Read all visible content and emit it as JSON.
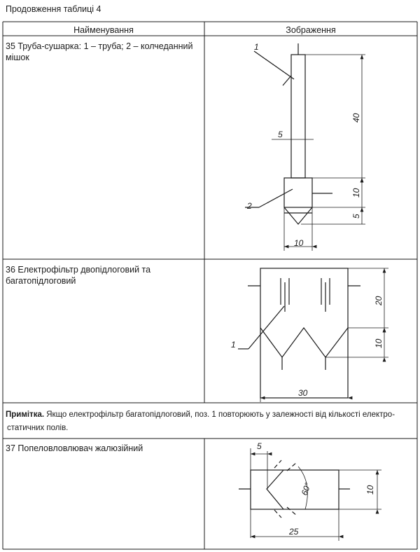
{
  "caption": "Продовження таблиці 4",
  "table": {
    "headers": {
      "name": "Найменування",
      "image": "Зображення"
    },
    "rows": [
      {
        "text": "35 Труба-сушарка: 1 – труба; 2 – колчеданний мішок",
        "dims": {
          "length": "40",
          "pipe_width": "5",
          "bag_height": "10",
          "cone_height": "5",
          "bag_width": "10"
        },
        "callouts": {
          "pipe": "1",
          "bag": "2"
        }
      },
      {
        "text": "36 Електрофільтр двопідлоговий та багатопідлоговий",
        "dims": {
          "upper_height": "20",
          "lower_height": "10",
          "width": "30"
        },
        "callouts": {
          "field": "1"
        }
      },
      {
        "text": "37 Попеловловлювач жалюзійний",
        "dims": {
          "offset": "5",
          "angle": "60°",
          "height": "10",
          "length": "25"
        }
      }
    ],
    "note": {
      "label": "Примітка.",
      "line1": " Якщо електрофільтр багатопідлоговий, поз. 1 повторюють у залежності від кількості електро-",
      "line2": "статичних полів."
    }
  }
}
